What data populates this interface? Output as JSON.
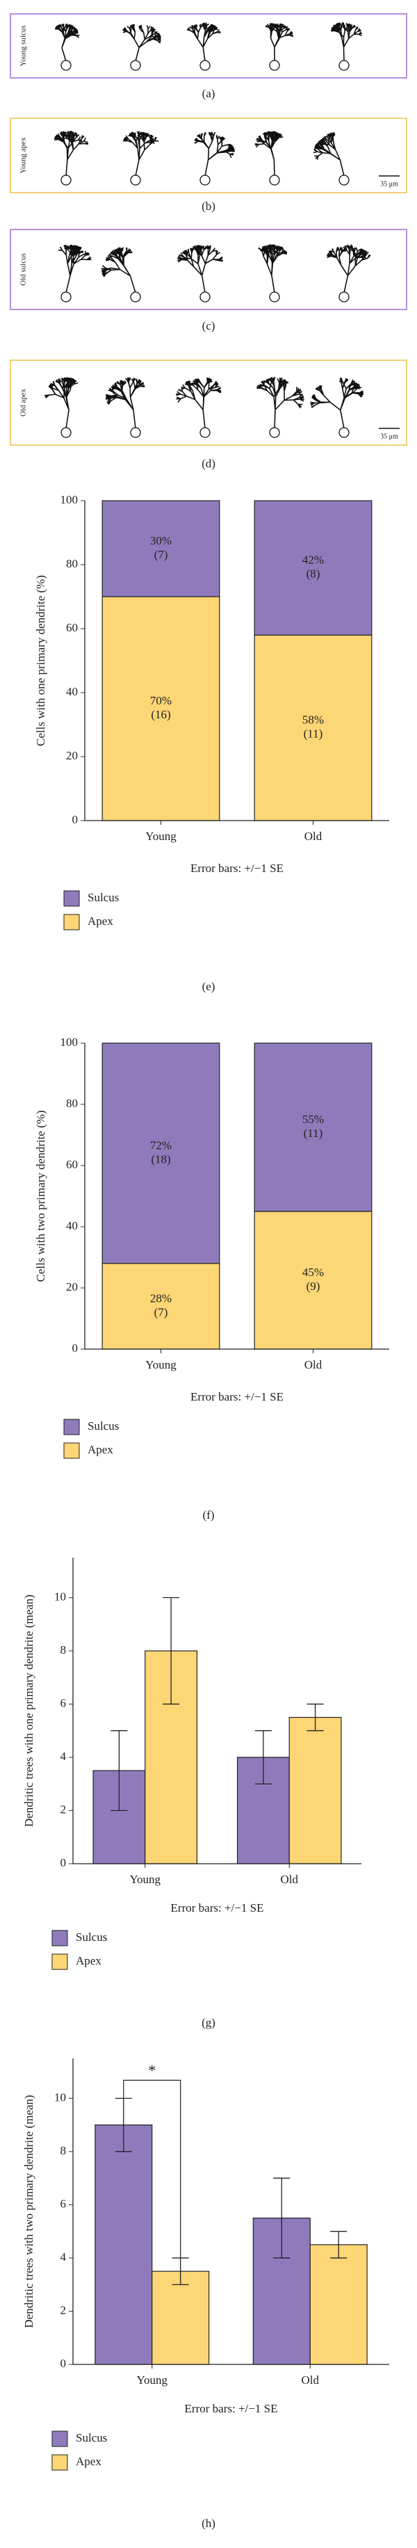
{
  "panels": [
    {
      "label": "Young sulcus",
      "caption": "(a)"
    },
    {
      "label": "Young apex",
      "caption": "(b)",
      "scale_bar": "35 μm"
    },
    {
      "label": "Old sulcus",
      "caption": "(c)"
    },
    {
      "label": "Old apex",
      "caption": "(d)",
      "scale_bar": "35 μm"
    }
  ],
  "chart_data": [
    {
      "type": "stacked_bar",
      "panel_label": "(e)",
      "ylabel": "Cells with one primary dendrite (%)",
      "categories": [
        "Young",
        "Old"
      ],
      "series": [
        {
          "name": "Sulcus",
          "color": "#8f7bbb",
          "values": [
            30,
            42
          ],
          "value_labels": [
            "30%",
            "42%"
          ],
          "count_labels": [
            "(7)",
            "(8)"
          ]
        },
        {
          "name": "Apex",
          "color": "#fdd675",
          "values": [
            70,
            58
          ],
          "value_labels": [
            "70%",
            "58%"
          ],
          "count_labels": [
            "(16)",
            "(11)"
          ]
        }
      ],
      "ylim": [
        0,
        100
      ],
      "yticks": [
        0,
        20,
        40,
        60,
        80,
        100
      ],
      "note": "Error bars: +/−1 SE",
      "legend": "bottom-left"
    },
    {
      "type": "stacked_bar",
      "panel_label": "(f)",
      "ylabel": "Cells with two primary dendrite (%)",
      "categories": [
        "Young",
        "Old"
      ],
      "series": [
        {
          "name": "Sulcus",
          "color": "#8f7bbb",
          "values": [
            72,
            55
          ],
          "value_labels": [
            "72%",
            "55%"
          ],
          "count_labels": [
            "(18)",
            "(11)"
          ]
        },
        {
          "name": "Apex",
          "color": "#fdd675",
          "values": [
            28,
            45
          ],
          "value_labels": [
            "28%",
            "45%"
          ],
          "count_labels": [
            "(7)",
            "(9)"
          ]
        }
      ],
      "ylim": [
        0,
        100
      ],
      "yticks": [
        0,
        20,
        40,
        60,
        80,
        100
      ],
      "note": "Error bars: +/−1 SE",
      "legend": "bottom-left"
    },
    {
      "type": "bar",
      "panel_label": "(g)",
      "ylabel": "Dendritic trees with one primary dendrite (mean)",
      "categories": [
        "Young",
        "Old"
      ],
      "series": [
        {
          "name": "Sulcus",
          "color": "#8f7bbb",
          "values": [
            3.5,
            4
          ],
          "errors": [
            1.5,
            1
          ]
        },
        {
          "name": "Apex",
          "color": "#fdd675",
          "values": [
            8,
            5.5
          ],
          "errors": [
            2,
            0.5
          ]
        }
      ],
      "ylim": [
        0,
        11.5
      ],
      "yticks": [
        0,
        2,
        4,
        6,
        8,
        10
      ],
      "note": "Error bars: +/−1 SE",
      "legend": "bottom-left"
    },
    {
      "type": "bar",
      "panel_label": "(h)",
      "ylabel": "Dendritic trees with two primary dendrite (mean)",
      "categories": [
        "Young",
        "Old"
      ],
      "series": [
        {
          "name": "Sulcus",
          "color": "#8f7bbb",
          "values": [
            9,
            5.5
          ],
          "errors": [
            1,
            1.5
          ]
        },
        {
          "name": "Apex",
          "color": "#fdd675",
          "values": [
            3.5,
            4.5
          ],
          "errors": [
            0.5,
            0.5
          ]
        }
      ],
      "ylim": [
        0,
        11.5
      ],
      "yticks": [
        0,
        2,
        4,
        6,
        8,
        10
      ],
      "note": "Error bars: +/−1 SE",
      "legend": "bottom-left",
      "annotation": "*"
    }
  ]
}
